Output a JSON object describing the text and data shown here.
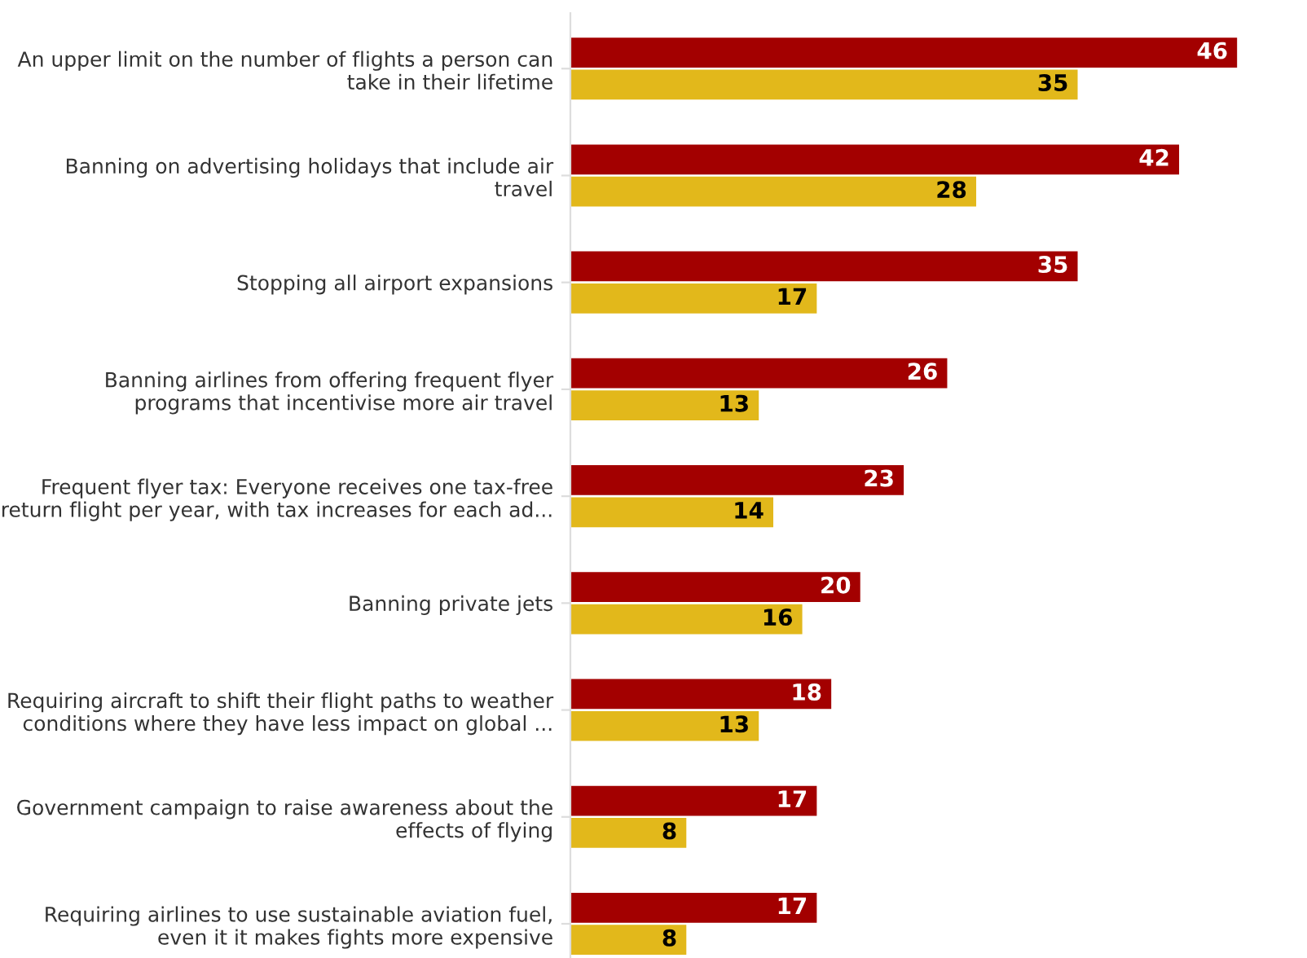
{
  "chart_data": {
    "type": "bar",
    "orientation": "horizontal",
    "tick_labels": "y",
    "data_labels": true,
    "categories": [
      "An upper limit on the number of flights a person can\ntake in their lifetime",
      "Banning on advertising holidays that include air\ntravel",
      "Stopping all airport expansions",
      "Banning airlines from offering frequent flyer\nprograms that incentivise more air travel",
      "Frequent flyer tax: Everyone receives one tax-free\nreturn flight per year, with tax increases for each ad...",
      "Banning private jets",
      "Requiring aircraft to shift their flight paths to weather\nconditions where they have less impact on global ...",
      "Government campaign to raise awareness about the\neffects of flying",
      "Requiring airlines to use sustainable aviation fuel,\neven it it makes fights more expensive"
    ],
    "series": [
      {
        "color": "#a30000",
        "values": [
          46,
          42,
          35,
          26,
          23,
          20,
          18,
          17,
          17
        ]
      },
      {
        "color": "#e2b81b",
        "values": [
          35,
          28,
          17,
          13,
          14,
          16,
          13,
          8,
          8
        ]
      }
    ]
  }
}
